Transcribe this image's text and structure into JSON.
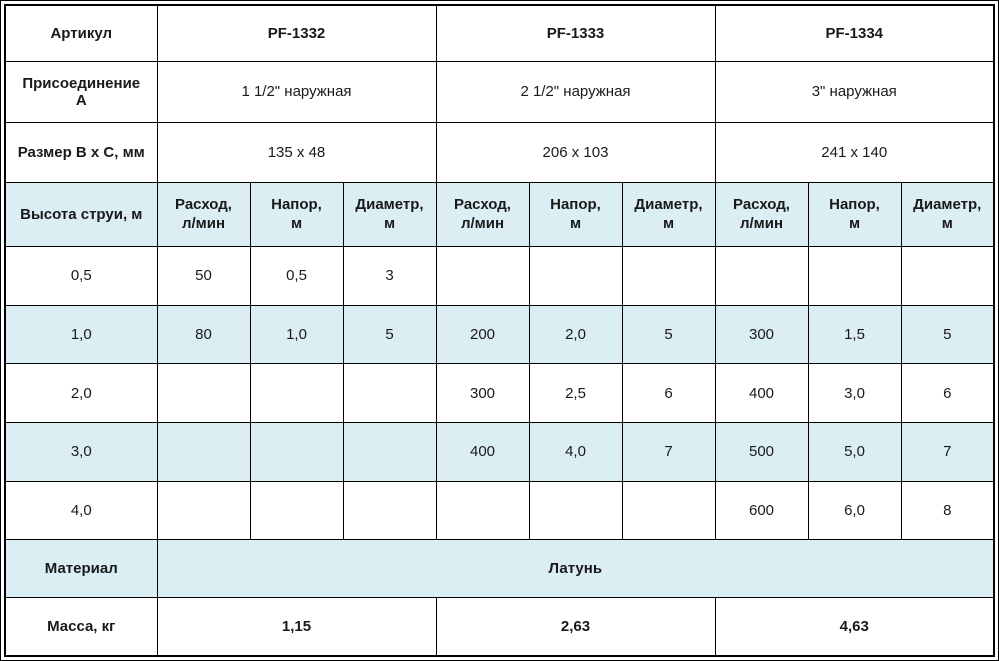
{
  "table": {
    "article": {
      "label": "Артикул",
      "values": [
        "PF-1332",
        "PF-1333",
        "PF-1334"
      ]
    },
    "connection": {
      "label": "Присоединение\nА",
      "values": [
        "1 1/2\" наружная",
        "2 1/2\" наружная",
        "3\" наружная"
      ]
    },
    "size": {
      "label": "Размер B x C, мм",
      "values": [
        "135 x 48",
        "206 x 103",
        "241 x 140"
      ]
    },
    "jet_header": {
      "label": "Высота струи, м",
      "sub_headers": [
        "Расход,\nл/мин",
        "Напор,\nм",
        "Диаметр,\nм"
      ]
    },
    "data_rows": [
      {
        "height": "0,5",
        "cells": [
          "50",
          "0,5",
          "3",
          "",
          "",
          "",
          "",
          "",
          ""
        ]
      },
      {
        "height": "1,0",
        "cells": [
          "80",
          "1,0",
          "5",
          "200",
          "2,0",
          "5",
          "300",
          "1,5",
          "5"
        ]
      },
      {
        "height": "2,0",
        "cells": [
          "",
          "",
          "",
          "300",
          "2,5",
          "6",
          "400",
          "3,0",
          "6"
        ]
      },
      {
        "height": "3,0",
        "cells": [
          "",
          "",
          "",
          "400",
          "4,0",
          "7",
          "500",
          "5,0",
          "7"
        ]
      },
      {
        "height": "4,0",
        "cells": [
          "",
          "",
          "",
          "",
          "",
          "",
          "600",
          "6,0",
          "8"
        ]
      }
    ],
    "material": {
      "label": "Материал",
      "value": "Латунь"
    },
    "mass": {
      "label": "Масса, кг",
      "values": [
        "1,15",
        "2,63",
        "4,63"
      ]
    }
  },
  "colors": {
    "shaded_row_bg": "#daeef3",
    "article_text": "#17338f",
    "border": "#000000",
    "text": "#1a1a1a"
  }
}
